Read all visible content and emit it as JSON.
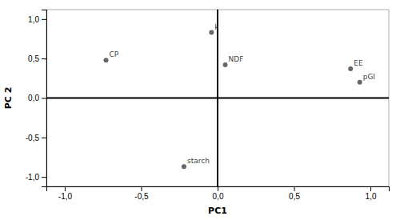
{
  "chart_data": {
    "type": "scatter",
    "xlabel": "PC1",
    "ylabel": "PC 2",
    "labels": [
      "k",
      "CP",
      "NDF",
      "EE",
      "pGI",
      "starch"
    ],
    "x": [
      -0.04,
      -0.73,
      0.05,
      0.87,
      0.93,
      -0.22
    ],
    "values": [
      0.83,
      0.48,
      0.42,
      0.37,
      0.2,
      -0.87
    ],
    "color": "#666666",
    "xlim": [
      -1.12,
      1.12
    ],
    "ylim": [
      -1.12,
      1.12
    ],
    "xticks": [
      {
        "value": -1.0,
        "label": "-1,0"
      },
      {
        "value": -0.5,
        "label": "-0,5"
      },
      {
        "value": 0.0,
        "label": "0,0"
      },
      {
        "value": 0.5,
        "label": "0,5"
      },
      {
        "value": 1.0,
        "label": "1,0"
      }
    ],
    "yticks": [
      {
        "value": -1.0,
        "label": "-1,0"
      },
      {
        "value": -0.5,
        "label": "-0,5"
      },
      {
        "value": 0.0,
        "label": "0,0"
      },
      {
        "value": 0.5,
        "label": "0,5"
      },
      {
        "value": 1.0,
        "label": "1,0"
      }
    ],
    "grid": false
  }
}
